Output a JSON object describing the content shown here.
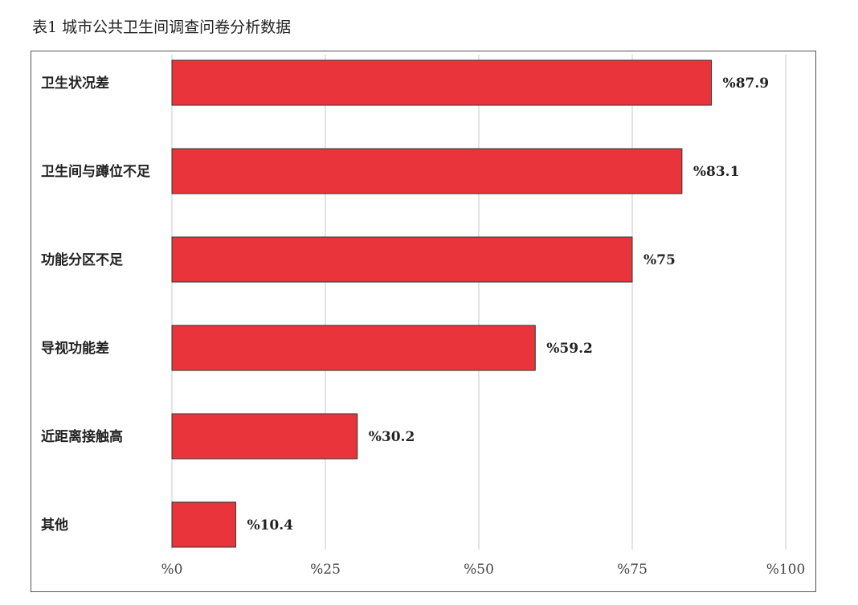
{
  "caption": "表1 城市公共卫生间调查问卷分析数据",
  "chart_data": {
    "type": "bar",
    "orientation": "horizontal",
    "title": "",
    "xlabel": "",
    "ylabel": "",
    "categories": [
      "卫生状况差",
      "卫生间与蹲位不足",
      "功能分区不足",
      "导视功能差",
      "近距离接触高",
      "其他"
    ],
    "values": [
      87.9,
      83.1,
      75,
      59.2,
      30.2,
      10.4
    ],
    "value_labels": [
      "%87.9",
      "%83.1",
      "%75",
      "%59.2",
      "%30.2",
      "%10.4"
    ],
    "xlim": [
      0,
      100
    ],
    "x_ticks": [
      0,
      25,
      50,
      75,
      100
    ],
    "x_tick_labels": [
      "%0",
      "%25",
      "%50",
      "%75",
      "%100"
    ],
    "grid": "vertical",
    "legend": "none",
    "colors": {
      "bar_fill": "#e8343a",
      "bar_stroke": "#333333",
      "gridline": "#c8c8c8"
    }
  }
}
